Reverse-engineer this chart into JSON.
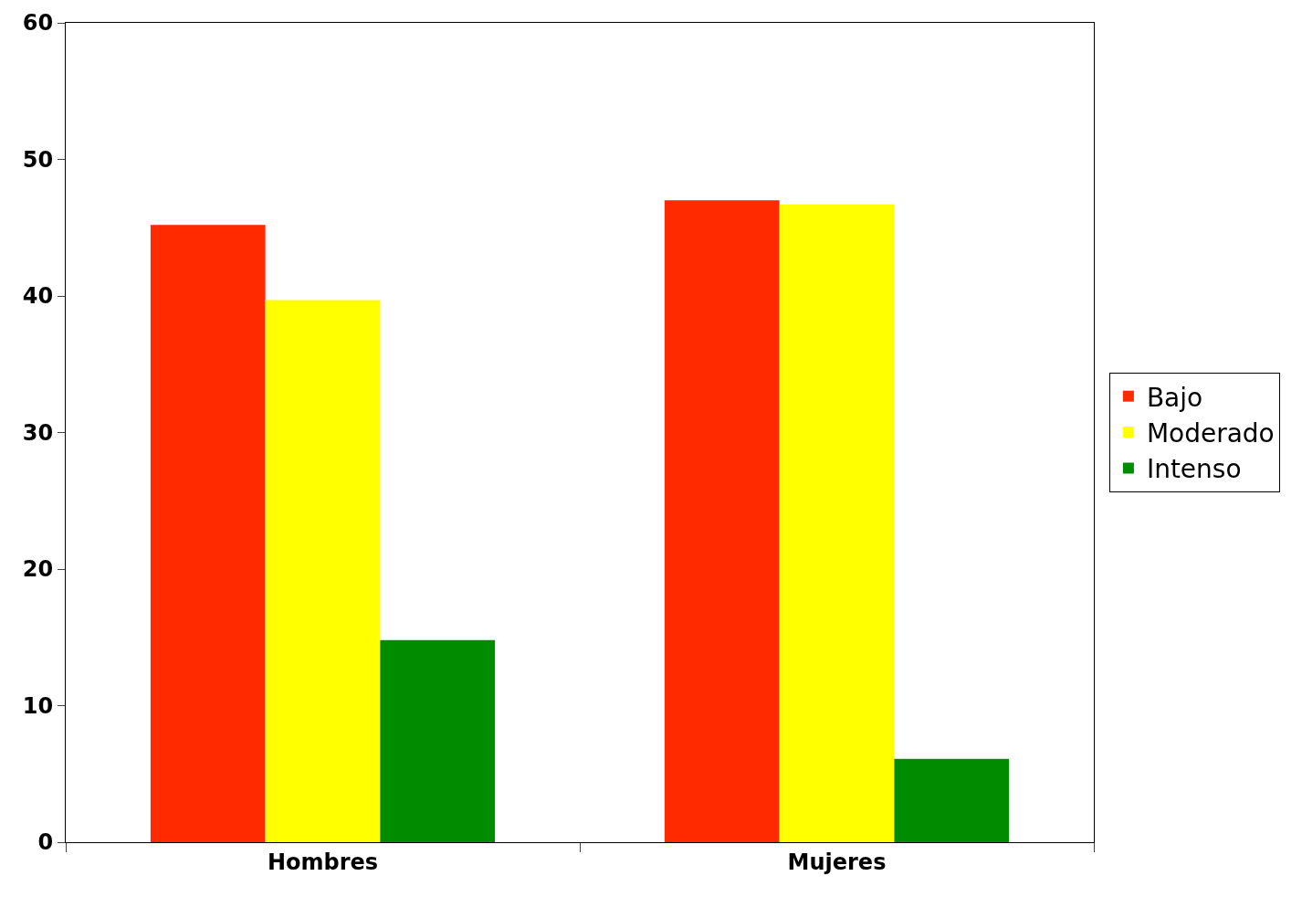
{
  "chart_data": {
    "type": "bar",
    "categories": [
      "Hombres",
      "Mujeres"
    ],
    "series": [
      {
        "name": "Bajo",
        "color": "#ff2a00",
        "values": [
          45.2,
          47.0
        ]
      },
      {
        "name": "Moderado",
        "color": "#ffff00",
        "values": [
          39.7,
          46.7
        ]
      },
      {
        "name": "Intenso",
        "color": "#008c00",
        "values": [
          14.8,
          6.1
        ]
      }
    ],
    "ylim": [
      0,
      60
    ],
    "yticks": [
      0,
      10,
      20,
      30,
      40,
      50,
      60
    ],
    "grid": false,
    "legend": "right"
  }
}
